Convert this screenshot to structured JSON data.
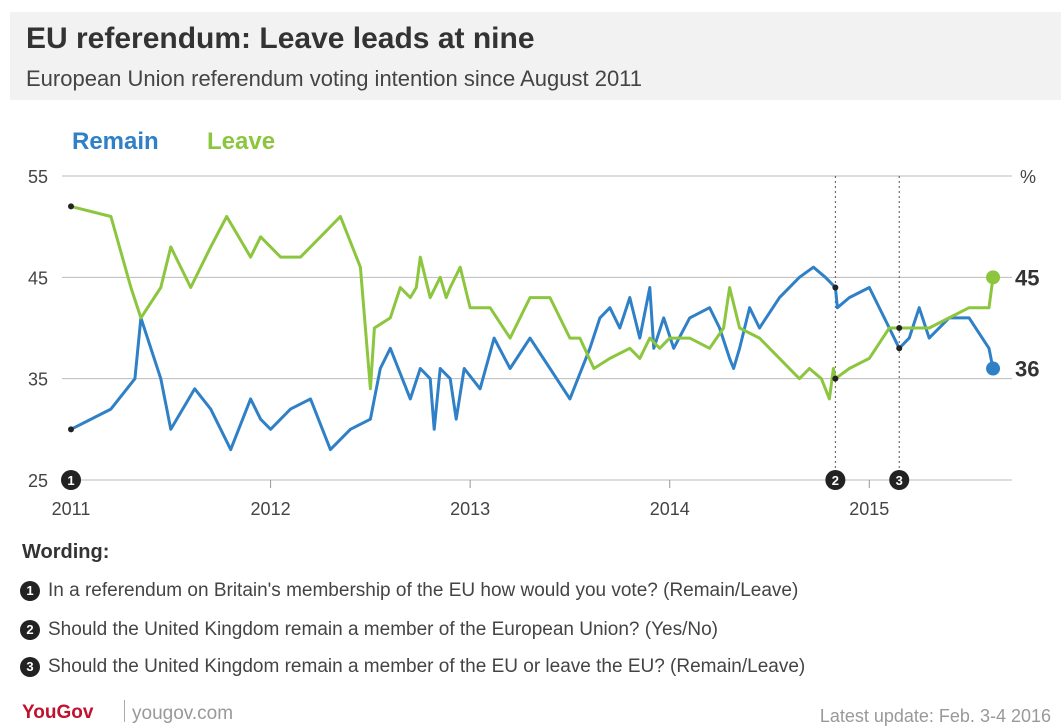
{
  "header": {
    "title": "EU referendum: Leave leads at nine",
    "subtitle": "European Union referendum voting intention since August 2011"
  },
  "legend": {
    "remain": "Remain",
    "leave": "Leave"
  },
  "colors": {
    "remain": "#2f80c6",
    "leave": "#8cc63f",
    "grid": "#bbbbbb",
    "marker": "#222222"
  },
  "chart_data": {
    "type": "line",
    "y_unit": "%",
    "ylim": [
      25,
      55
    ],
    "y_ticks": [
      25,
      35,
      45,
      55
    ],
    "xlim": [
      2011.0,
      2015.7
    ],
    "x_ticks": [
      {
        "value": 2011.0,
        "label": "2011"
      },
      {
        "value": 2012.0,
        "label": "2012"
      },
      {
        "value": 2013.0,
        "label": "2013"
      },
      {
        "value": 2014.0,
        "label": "2014"
      },
      {
        "value": 2015.0,
        "label": "2015"
      }
    ],
    "grid": true,
    "markers": [
      {
        "x": 2011.0,
        "label": "1",
        "text": "In a referendum on Britain's membership of the EU how would you vote? (Remain/Leave)"
      },
      {
        "x": 2014.83,
        "label": "2",
        "text": "Should the United Kingdom remain a member of the European Union? (Yes/No)"
      },
      {
        "x": 2015.15,
        "label": "3",
        "text": "Should the United Kingdom remain a member of the EU or leave the EU? (Remain/Leave)"
      }
    ],
    "series": [
      {
        "name": "Remain",
        "end_label": "36",
        "points": [
          [
            2011.0,
            30
          ],
          [
            2011.2,
            32
          ],
          [
            2011.32,
            35
          ],
          [
            2011.35,
            41
          ],
          [
            2011.45,
            35
          ],
          [
            2011.5,
            30
          ],
          [
            2011.62,
            34
          ],
          [
            2011.7,
            32
          ],
          [
            2011.8,
            28
          ],
          [
            2011.9,
            33
          ],
          [
            2011.95,
            31
          ],
          [
            2012.0,
            30
          ],
          [
            2012.1,
            32
          ],
          [
            2012.2,
            33
          ],
          [
            2012.3,
            28
          ],
          [
            2012.4,
            30
          ],
          [
            2012.5,
            31
          ],
          [
            2012.55,
            36
          ],
          [
            2012.6,
            38
          ],
          [
            2012.7,
            33
          ],
          [
            2012.75,
            36
          ],
          [
            2012.8,
            35
          ],
          [
            2012.82,
            30
          ],
          [
            2012.85,
            36
          ],
          [
            2012.9,
            35
          ],
          [
            2012.93,
            31
          ],
          [
            2012.97,
            36
          ],
          [
            2013.05,
            34
          ],
          [
            2013.12,
            39
          ],
          [
            2013.2,
            36
          ],
          [
            2013.3,
            39
          ],
          [
            2013.4,
            36
          ],
          [
            2013.5,
            33
          ],
          [
            2013.6,
            38
          ],
          [
            2013.65,
            41
          ],
          [
            2013.7,
            42
          ],
          [
            2013.75,
            40
          ],
          [
            2013.8,
            43
          ],
          [
            2013.85,
            39
          ],
          [
            2013.9,
            44
          ],
          [
            2013.92,
            38
          ],
          [
            2013.97,
            41
          ],
          [
            2014.02,
            38
          ],
          [
            2014.1,
            41
          ],
          [
            2014.2,
            42
          ],
          [
            2014.25,
            40
          ],
          [
            2014.3,
            37
          ],
          [
            2014.32,
            36
          ],
          [
            2014.35,
            38
          ],
          [
            2014.4,
            42
          ],
          [
            2014.45,
            40
          ],
          [
            2014.55,
            43
          ],
          [
            2014.65,
            45
          ],
          [
            2014.72,
            46
          ],
          [
            2014.78,
            45
          ],
          [
            2014.83,
            44
          ],
          [
            2014.84,
            42
          ],
          [
            2014.9,
            43
          ],
          [
            2015.0,
            44
          ],
          [
            2015.1,
            40
          ],
          [
            2015.15,
            38
          ],
          [
            2015.2,
            39
          ],
          [
            2015.25,
            42
          ],
          [
            2015.3,
            39
          ],
          [
            2015.4,
            41
          ],
          [
            2015.5,
            41
          ],
          [
            2015.6,
            38
          ],
          [
            2015.62,
            36
          ]
        ]
      },
      {
        "name": "Leave",
        "end_label": "45",
        "points": [
          [
            2011.0,
            52
          ],
          [
            2011.2,
            51
          ],
          [
            2011.3,
            44
          ],
          [
            2011.35,
            41
          ],
          [
            2011.45,
            44
          ],
          [
            2011.5,
            48
          ],
          [
            2011.6,
            44
          ],
          [
            2011.7,
            48
          ],
          [
            2011.78,
            51
          ],
          [
            2011.9,
            47
          ],
          [
            2011.95,
            49
          ],
          [
            2012.05,
            47
          ],
          [
            2012.15,
            47
          ],
          [
            2012.25,
            49
          ],
          [
            2012.35,
            51
          ],
          [
            2012.45,
            46
          ],
          [
            2012.5,
            34
          ],
          [
            2012.52,
            40
          ],
          [
            2012.6,
            41
          ],
          [
            2012.65,
            44
          ],
          [
            2012.7,
            43
          ],
          [
            2012.73,
            44
          ],
          [
            2012.75,
            47
          ],
          [
            2012.8,
            43
          ],
          [
            2012.85,
            45
          ],
          [
            2012.88,
            43
          ],
          [
            2012.9,
            44
          ],
          [
            2012.95,
            46
          ],
          [
            2013.0,
            42
          ],
          [
            2013.1,
            42
          ],
          [
            2013.2,
            39
          ],
          [
            2013.3,
            43
          ],
          [
            2013.4,
            43
          ],
          [
            2013.5,
            39
          ],
          [
            2013.55,
            39
          ],
          [
            2013.62,
            36
          ],
          [
            2013.7,
            37
          ],
          [
            2013.8,
            38
          ],
          [
            2013.85,
            37
          ],
          [
            2013.9,
            39
          ],
          [
            2013.95,
            38
          ],
          [
            2014.0,
            39
          ],
          [
            2014.1,
            39
          ],
          [
            2014.2,
            38
          ],
          [
            2014.27,
            40
          ],
          [
            2014.3,
            44
          ],
          [
            2014.35,
            40
          ],
          [
            2014.45,
            39
          ],
          [
            2014.55,
            37
          ],
          [
            2014.65,
            35
          ],
          [
            2014.7,
            36
          ],
          [
            2014.76,
            35
          ],
          [
            2014.8,
            33
          ],
          [
            2014.82,
            36
          ],
          [
            2014.83,
            35
          ],
          [
            2014.9,
            36
          ],
          [
            2015.0,
            37
          ],
          [
            2015.1,
            40
          ],
          [
            2015.15,
            40
          ],
          [
            2015.2,
            40
          ],
          [
            2015.3,
            40
          ],
          [
            2015.4,
            41
          ],
          [
            2015.5,
            42
          ],
          [
            2015.6,
            42
          ],
          [
            2015.62,
            45
          ]
        ]
      }
    ]
  },
  "wording": {
    "title": "Wording:"
  },
  "footer": {
    "brand": "YouGov",
    "url": "yougov.com",
    "update": "Latest update: Feb. 3-4 2016"
  }
}
